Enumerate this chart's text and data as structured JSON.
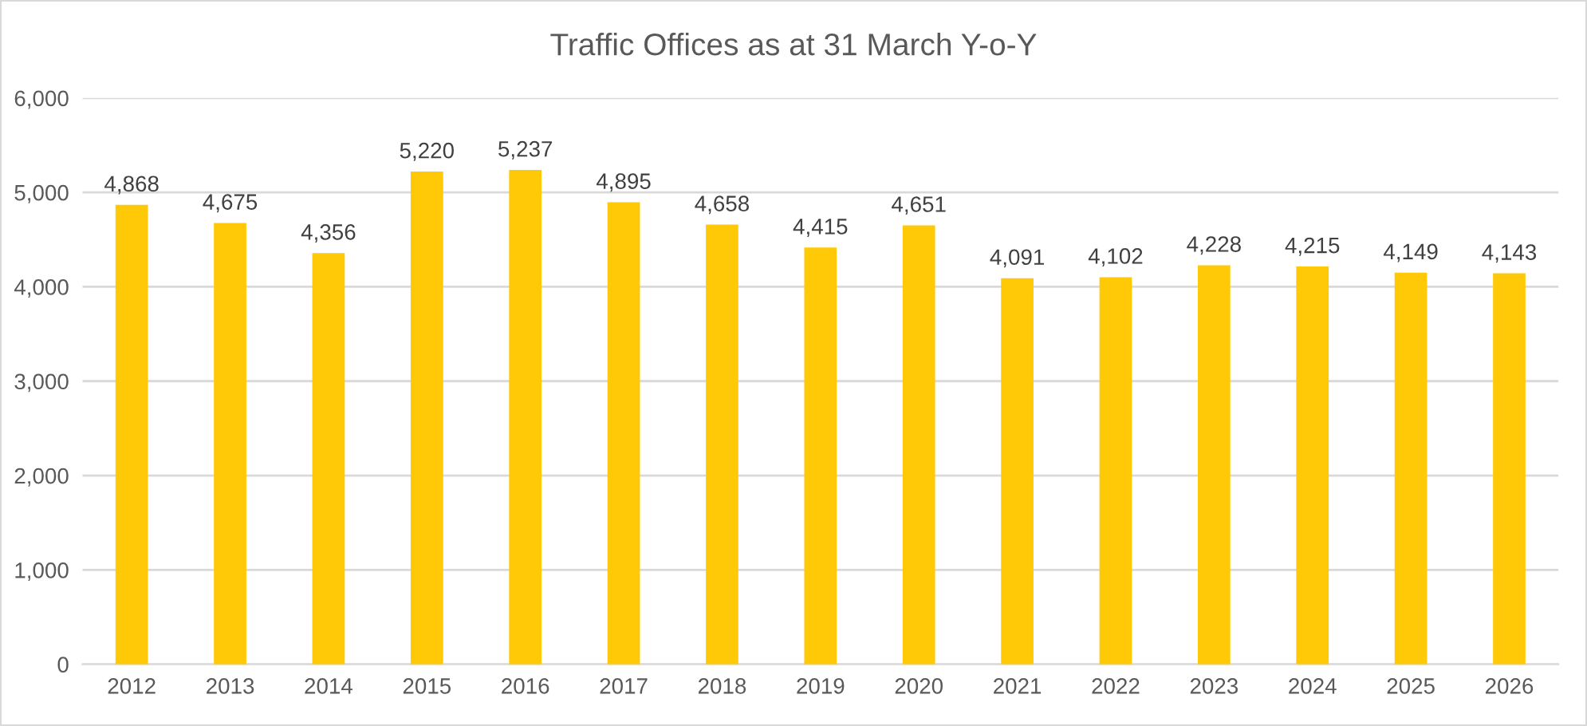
{
  "chart_data": {
    "type": "bar",
    "title": "Traffic Offices as at 31 March Y-o-Y",
    "categories": [
      "2012",
      "2013",
      "2014",
      "2015",
      "2016",
      "2017",
      "2018",
      "2019",
      "2020",
      "2021",
      "2022",
      "2023",
      "2024",
      "2025",
      "2026"
    ],
    "values": [
      4868,
      4675,
      4356,
      5220,
      5237,
      4895,
      4658,
      4415,
      4651,
      4091,
      4102,
      4228,
      4215,
      4149,
      4143
    ],
    "value_labels": [
      "4,868",
      "4,675",
      "4,356",
      "5,220",
      "5,237",
      "4,895",
      "4,658",
      "4,415",
      "4,651",
      "4,091",
      "4,102",
      "4,228",
      "4,215",
      "4,149",
      "4,143"
    ],
    "color": "#ffc907",
    "ylim": [
      0,
      6000
    ],
    "yticks": [
      0,
      {
        "value": 1000,
        "label": "1,000"
      },
      {
        "value": 2000,
        "label": "2,000"
      },
      {
        "value": 3000,
        "label": "3,000"
      },
      {
        "value": 4000,
        "label": "4,000"
      },
      {
        "value": 5000,
        "label": "5,000"
      },
      {
        "value": 6000,
        "label": "6,000"
      }
    ],
    "grid": "y"
  }
}
